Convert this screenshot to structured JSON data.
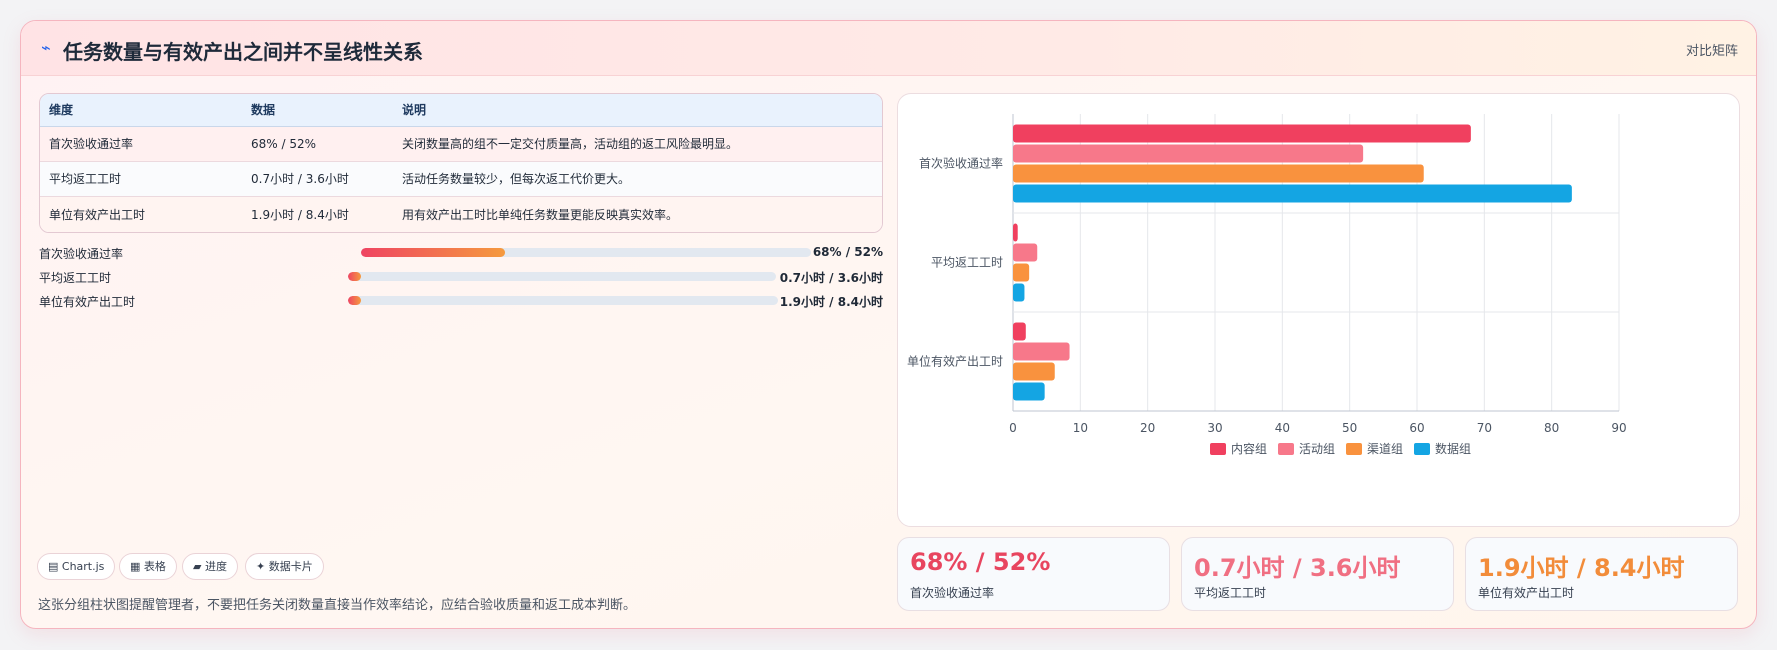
{
  "header": {
    "icon": "lightning-icon",
    "title": "任务数量与有效产出之间并不呈线性关系",
    "matrix_label": "对比矩阵"
  },
  "table": {
    "headers": [
      "维度",
      "数据",
      "说明"
    ],
    "rows": [
      [
        "首次验收通过率",
        "68% / 52%",
        "关闭数量高的组不一定交付质量高，活动组的返工风险最明显。"
      ],
      [
        "平均返工工时",
        "0.7小时 / 3.6小时",
        "活动任务数量较少，但每次返工代价更大。"
      ],
      [
        "单位有效产出工时",
        "1.9小时 / 8.4小时",
        "用有效产出工时比单纯任务数量更能反映真实效率。"
      ]
    ]
  },
  "progress": [
    {
      "label": "首次验收通过率",
      "value_text": "68% / 52%",
      "fill": 0.32
    },
    {
      "label": "平均返工工时",
      "value_text": "0.7小时 / 3.6小时",
      "fill": 0.03
    },
    {
      "label": "单位有效产出工时",
      "value_text": "1.9小时 / 8.4小时",
      "fill": 0.03
    }
  ],
  "chips": [
    "▤ Chart.js",
    "▦ 表格",
    "▰ 进度",
    "✦ 数据卡片"
  ],
  "footnote": "这张分组柱状图提醒管理者，不要把任务关闭数量直接当作效率结论，应结合验收质量和返工成本判断。",
  "stats": [
    {
      "value": "68% / 52%",
      "label": "首次验收通过率",
      "color": "#e8455f"
    },
    {
      "value": "0.7小时 / 3.6小时",
      "label": "平均返工工时",
      "color": "#f06f82"
    },
    {
      "value": "1.9小时 / 8.4小时",
      "label": "单位有效产出工时",
      "color": "#f28c3a"
    }
  ],
  "chart_data": {
    "type": "bar",
    "orientation": "horizontal",
    "categories": [
      "首次验收通过率",
      "平均返工工时",
      "单位有效产出工时"
    ],
    "series": [
      {
        "name": "内容组",
        "color": "#f0405f",
        "values": [
          68,
          0.7,
          1.9
        ]
      },
      {
        "name": "活动组",
        "color": "#f7788a",
        "values": [
          52,
          3.6,
          8.4
        ]
      },
      {
        "name": "渠道组",
        "color": "#f9923e",
        "values": [
          61,
          2.4,
          6.2
        ]
      },
      {
        "name": "数据组",
        "color": "#14a5e3",
        "values": [
          83,
          1.7,
          4.7
        ]
      }
    ],
    "xlim": [
      0,
      90
    ],
    "xticks": [
      0,
      10,
      20,
      30,
      40,
      50,
      60,
      70,
      80,
      90
    ],
    "grid": true,
    "legend": "bottom"
  }
}
